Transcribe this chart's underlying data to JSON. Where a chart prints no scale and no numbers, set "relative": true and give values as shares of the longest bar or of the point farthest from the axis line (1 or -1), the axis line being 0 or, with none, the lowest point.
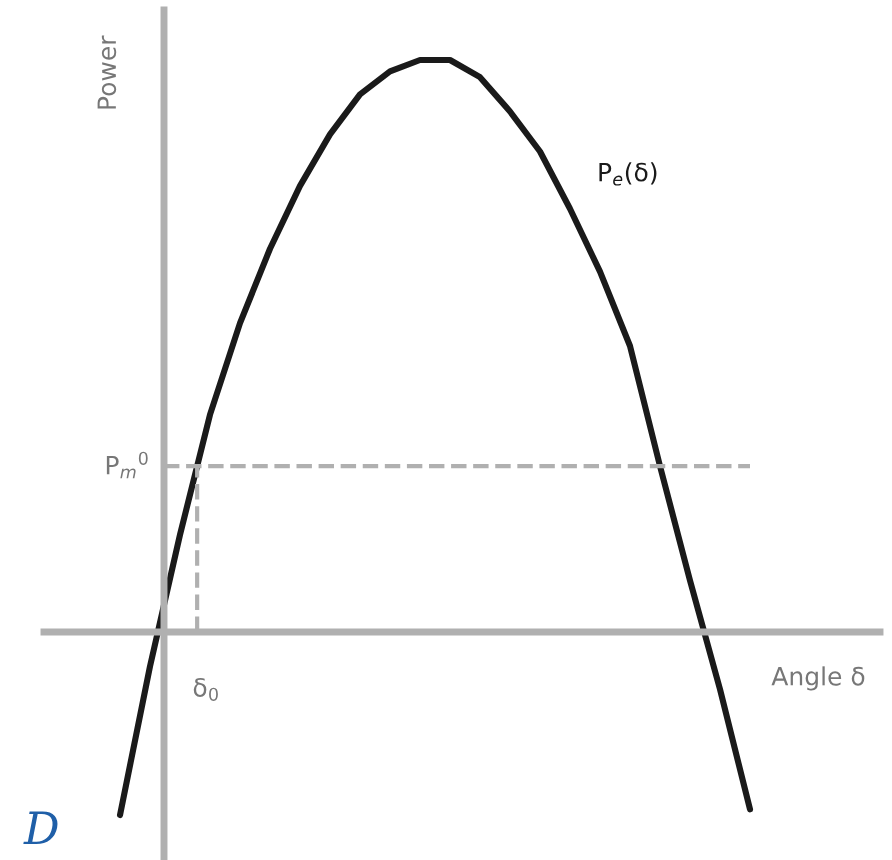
{
  "chart_data": {
    "type": "line",
    "relative": true,
    "xlabel": "Angle δ",
    "ylabel": "Power",
    "categories": [
      null,
      null,
      null,
      null,
      null,
      null,
      null,
      null,
      null,
      null,
      null,
      null,
      null,
      null,
      null,
      null,
      null,
      null,
      null,
      null,
      null,
      null
    ],
    "series": [
      {
        "name": "P$_{e}$(δ)",
        "color": "#1a1a1a",
        "values": [
          -0.32,
          -0.06,
          0.17,
          0.38,
          0.54,
          0.67,
          0.78,
          0.87,
          0.94,
          0.98,
          1.0,
          1.0,
          0.97,
          0.91,
          0.84,
          0.74,
          0.63,
          0.5,
          0.29,
          0.09,
          -0.1,
          -0.31
        ]
      }
    ],
    "ref_lines": [
      {
        "axis": "y",
        "value": 0.29,
        "label": "P$_{m}$$^{0}$",
        "color": "#b0b0b0",
        "line_style": "dashed"
      }
    ],
    "annotations": [
      "δ$_{0}$",
      "D"
    ],
    "legend": false,
    "marker": "none",
    "line_style": "solid"
  }
}
